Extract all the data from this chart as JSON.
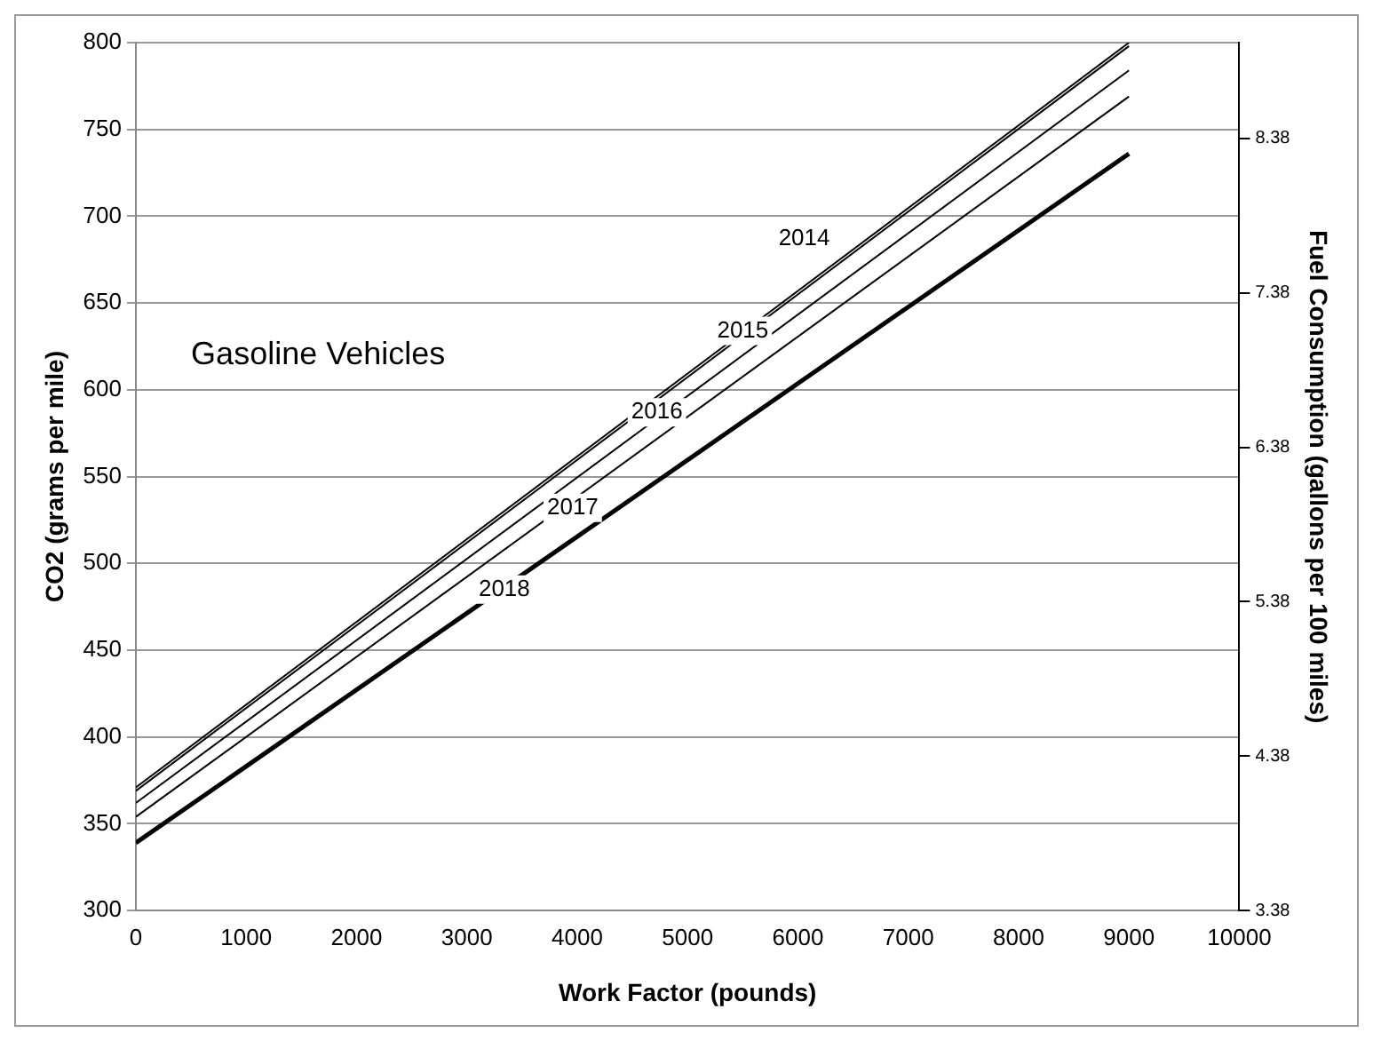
{
  "chart_data": {
    "type": "line",
    "xlabel": "Work Factor (pounds)",
    "ylabel": "CO2 (grams per mile)",
    "y2label": "Fuel Consumption (gallons per 100 miles)",
    "x": [
      0,
      9000
    ],
    "series": [
      {
        "color": "#000000",
        "values": [
          371,
          800
        ]
      },
      {
        "color": "#000000",
        "values": [
          369,
          798
        ]
      },
      {
        "color": "#000000",
        "values": [
          362,
          784
        ]
      },
      {
        "color": "#000000",
        "values": [
          354,
          769
        ]
      },
      {
        "color": "#000000",
        "values": [
          339,
          736
        ]
      }
    ],
    "xlim": [
      0,
      10000
    ],
    "xticks": [
      0,
      1000,
      2000,
      3000,
      4000,
      5000,
      6000,
      7000,
      8000,
      9000,
      10000
    ],
    "ylim": [
      300,
      800
    ],
    "yticks": [
      300,
      350,
      400,
      450,
      500,
      550,
      600,
      650,
      700,
      750,
      800
    ],
    "y2lim": [
      3.38,
      9.0
    ],
    "y2ticks": [
      3.38,
      4.38,
      5.38,
      6.38,
      7.38,
      8.38
    ],
    "grid": "y",
    "marker": "none",
    "line_style": "solid",
    "annotations": [
      "Gasoline Vehicles",
      {
        "text": "2014",
        "x": 6057,
        "y": 687
      },
      {
        "text": "2015",
        "x": 5500,
        "y": 634
      },
      {
        "text": "2016",
        "x": 4722,
        "y": 587
      },
      {
        "text": "2017",
        "x": 3959,
        "y": 532
      },
      {
        "text": "2018",
        "x": 3339,
        "y": 485
      }
    ]
  }
}
